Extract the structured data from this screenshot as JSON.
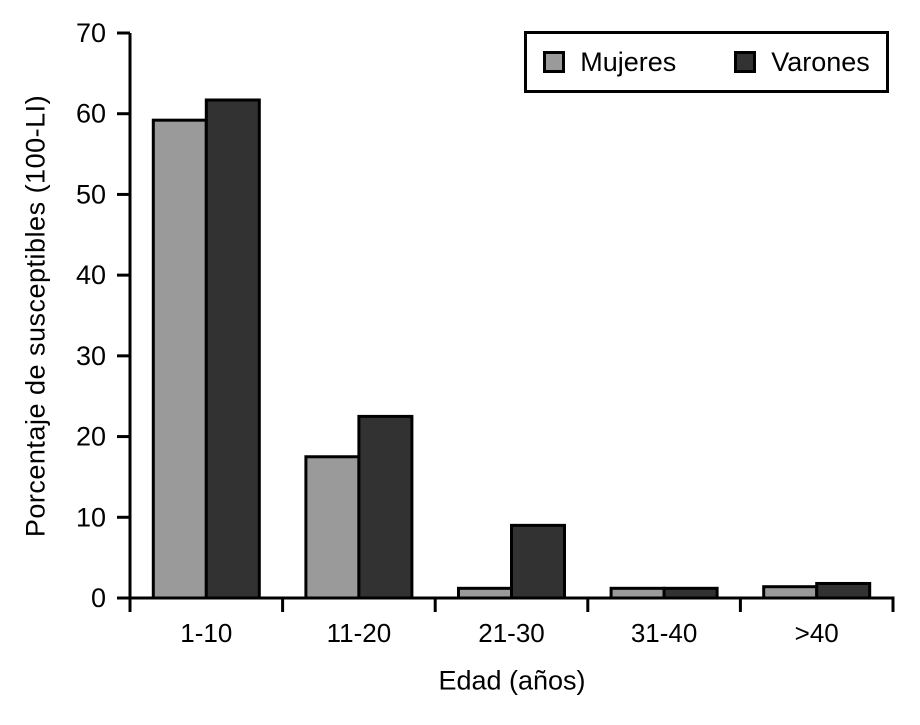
{
  "chart_data": {
    "type": "bar",
    "title": "",
    "categories": [
      "1-10",
      "11-20",
      "21-30",
      "31-40",
      ">40"
    ],
    "series": [
      {
        "name": "Mujeres",
        "color": "#9a9a9a",
        "values": [
          59.2,
          17.5,
          1.2,
          1.2,
          1.4
        ]
      },
      {
        "name": "Varones",
        "color": "#323232",
        "values": [
          61.7,
          22.5,
          9.0,
          1.2,
          1.8
        ]
      }
    ],
    "xlabel": "Edad (años)",
    "ylabel": "Porcentaje de susceptibles (100-LI)",
    "ylim": [
      0,
      70
    ],
    "yticks": [
      0,
      10,
      20,
      30,
      40,
      50,
      60,
      70
    ],
    "grid": false,
    "legend_position": "top-right",
    "bar_border_color": "#000000",
    "axis_color": "#000000",
    "background_color": "#ffffff"
  },
  "legend": {
    "items": [
      {
        "label": "Mujeres"
      },
      {
        "label": "Varones"
      }
    ]
  }
}
